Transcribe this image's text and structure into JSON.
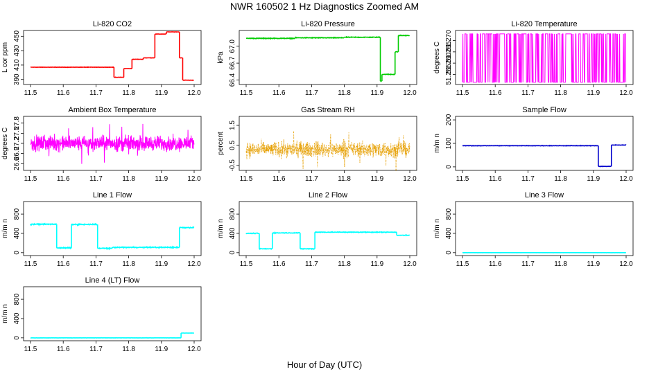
{
  "figure": {
    "title": "NWR  160502  1 Hz Diagnostics Zoomed AM",
    "xlabel": "Hour of Day (UTC)"
  },
  "chart_data": [
    {
      "type": "line",
      "title": "Li-820 CO2",
      "ylabel": "L cor ppm",
      "color": "#ff0000",
      "xlim": [
        11.5,
        12.0
      ],
      "xticks": [
        "11.5",
        "11.6",
        "11.7",
        "11.8",
        "11.9",
        "12.0"
      ],
      "ylim": [
        383,
        458
      ],
      "yticks": [
        {
          "v": 390,
          "label": "390"
        },
        {
          "v": 410,
          "label": "410"
        },
        {
          "v": 430,
          "label": "430"
        },
        {
          "v": 450,
          "label": "450"
        }
      ],
      "noise": 0.3,
      "segments": [
        [
          11.5,
          11.755,
          407
        ],
        [
          11.755,
          11.785,
          393
        ],
        [
          11.785,
          11.81,
          405
        ],
        [
          11.81,
          11.845,
          418
        ],
        [
          11.845,
          11.88,
          420
        ],
        [
          11.88,
          11.915,
          453
        ],
        [
          11.915,
          11.955,
          456
        ],
        [
          11.955,
          11.965,
          420
        ],
        [
          11.965,
          12.0,
          389
        ]
      ]
    },
    {
      "type": "line",
      "title": "Li-820 Pressure",
      "ylabel": "kPa",
      "color": "#00cc00",
      "xlim": [
        11.5,
        12.0
      ],
      "xticks": [
        "11.5",
        "11.6",
        "11.7",
        "11.8",
        "11.9",
        "12.0"
      ],
      "ylim": [
        66.32,
        67.28
      ],
      "yticks": [
        {
          "v": 66.4,
          "label": "66.4"
        },
        {
          "v": 66.7,
          "label": "66.7"
        },
        {
          "v": 67.0,
          "label": "67.0"
        }
      ],
      "noise": 0.008,
      "segments": [
        [
          11.5,
          11.65,
          67.14
        ],
        [
          11.65,
          11.8,
          67.15
        ],
        [
          11.8,
          11.91,
          67.16
        ],
        [
          11.91,
          11.915,
          66.38
        ],
        [
          11.915,
          11.955,
          66.5
        ],
        [
          11.955,
          11.965,
          66.9
        ],
        [
          11.965,
          12.0,
          67.19
        ]
      ]
    },
    {
      "type": "dense",
      "title": "Li-820 Temperature",
      "ylabel": "degrees C",
      "color": "#ff00ff",
      "xlim": [
        11.5,
        12.0
      ],
      "xticks": [
        "11.5",
        "11.6",
        "11.7",
        "11.8",
        "11.9",
        "12.0"
      ],
      "ylim": [
        51.2505,
        51.2745
      ],
      "yticks": [
        {
          "v": 51.255,
          "label": "51.255"
        },
        {
          "v": 51.26,
          "label": "51.260"
        },
        {
          "v": 51.265,
          "label": "51.265"
        },
        {
          "v": 51.27,
          "label": "51.270"
        }
      ],
      "lo": 51.2515,
      "hi": 51.273
    },
    {
      "type": "noise",
      "title": "Ambient Box Temperature",
      "ylabel": "degrees C",
      "color": "#ff00ff",
      "xlim": [
        11.5,
        12.0
      ],
      "xticks": [
        "11.5",
        "11.6",
        "11.7",
        "11.8",
        "11.9",
        "12.0"
      ],
      "ylim": [
        26.4,
        28.0
      ],
      "yticks": [
        {
          "v": 26.6,
          "label": "26.6"
        },
        {
          "v": 26.9,
          "label": "26.9"
        },
        {
          "v": 27.2,
          "label": "27.2"
        },
        {
          "v": 27.5,
          "label": "27.5"
        },
        {
          "v": 27.8,
          "label": "27.8"
        }
      ],
      "mean": 27.2,
      "spread": 0.32,
      "dotted": false
    },
    {
      "type": "noise",
      "title": "Gas Stream RH",
      "ylabel": "percent",
      "color": "#e69f00",
      "xlim": [
        11.5,
        12.0
      ],
      "xticks": [
        "11.5",
        "11.6",
        "11.7",
        "11.8",
        "11.9",
        "12.0"
      ],
      "ylim": [
        -0.75,
        1.95
      ],
      "yticks": [
        {
          "v": -0.5,
          "label": "-0.5"
        },
        {
          "v": 0.5,
          "label": "0.5"
        },
        {
          "v": 1.5,
          "label": "1.5"
        }
      ],
      "mean": 0.3,
      "spread": 0.55,
      "dotted": true
    },
    {
      "type": "line",
      "title": "Sample Flow",
      "ylabel": "m/m n",
      "color": "#0000cc",
      "xlim": [
        11.5,
        12.0
      ],
      "xticks": [
        "11.5",
        "11.6",
        "11.7",
        "11.8",
        "11.9",
        "12.0"
      ],
      "ylim": [
        -15,
        215
      ],
      "yticks": [
        {
          "v": 0,
          "label": "0"
        },
        {
          "v": 100,
          "label": "100"
        },
        {
          "v": 200,
          "label": "200"
        }
      ],
      "noise": 1.2,
      "segments": [
        [
          11.5,
          11.915,
          90
        ],
        [
          11.915,
          11.955,
          2
        ],
        [
          11.955,
          12.0,
          93
        ]
      ]
    },
    {
      "type": "line",
      "title": "Line 1 Flow",
      "ylabel": "m/m n",
      "color": "#00ffff",
      "xlim": [
        11.5,
        12.0
      ],
      "xticks": [
        "11.5",
        "11.6",
        "11.7",
        "11.8",
        "11.9",
        "12.0"
      ],
      "ylim": [
        -60,
        1060
      ],
      "yticks": [
        {
          "v": 0,
          "label": "0"
        },
        {
          "v": 400,
          "label": "400"
        },
        {
          "v": 800,
          "label": "800"
        }
      ],
      "noise": 14,
      "segments": [
        [
          11.5,
          11.58,
          590
        ],
        [
          11.58,
          11.625,
          100
        ],
        [
          11.625,
          11.705,
          585
        ],
        [
          11.705,
          11.75,
          90
        ],
        [
          11.75,
          11.955,
          110
        ],
        [
          11.955,
          12.0,
          520
        ]
      ]
    },
    {
      "type": "line",
      "title": "Line 2 Flow",
      "ylabel": "m/m n",
      "color": "#00ffff",
      "xlim": [
        11.5,
        12.0
      ],
      "xticks": [
        "11.5",
        "11.6",
        "11.7",
        "11.8",
        "11.9",
        "12.0"
      ],
      "ylim": [
        -60,
        1060
      ],
      "yticks": [
        {
          "v": 0,
          "label": "0"
        },
        {
          "v": 400,
          "label": "400"
        },
        {
          "v": 800,
          "label": "800"
        }
      ],
      "noise": 10,
      "segments": [
        [
          11.5,
          11.54,
          400
        ],
        [
          11.54,
          11.58,
          80
        ],
        [
          11.58,
          11.665,
          410
        ],
        [
          11.665,
          11.71,
          80
        ],
        [
          11.71,
          11.96,
          425
        ],
        [
          11.96,
          12.0,
          360
        ]
      ]
    },
    {
      "type": "line",
      "title": "Line 3 Flow",
      "ylabel": "m/m n",
      "color": "#00ffff",
      "xlim": [
        11.5,
        12.0
      ],
      "xticks": [
        "11.5",
        "11.6",
        "11.7",
        "11.8",
        "11.9",
        "12.0"
      ],
      "ylim": [
        -60,
        1060
      ],
      "yticks": [
        {
          "v": 0,
          "label": "0"
        },
        {
          "v": 400,
          "label": "400"
        },
        {
          "v": 800,
          "label": "800"
        }
      ],
      "noise": 1,
      "segments": [
        [
          11.5,
          12.0,
          0
        ]
      ]
    },
    {
      "type": "line",
      "title": "Line 4 (LT) Flow",
      "ylabel": "m/m n",
      "color": "#00ffff",
      "xlim": [
        11.5,
        12.0
      ],
      "xticks": [
        "11.5",
        "11.6",
        "11.7",
        "11.8",
        "11.9",
        "12.0"
      ],
      "ylim": [
        -60,
        1060
      ],
      "yticks": [
        {
          "v": 0,
          "label": "0"
        },
        {
          "v": 400,
          "label": "400"
        },
        {
          "v": 800,
          "label": "800"
        }
      ],
      "noise": 3,
      "segments": [
        [
          11.5,
          11.96,
          0
        ],
        [
          11.96,
          12.0,
          100
        ]
      ]
    }
  ]
}
